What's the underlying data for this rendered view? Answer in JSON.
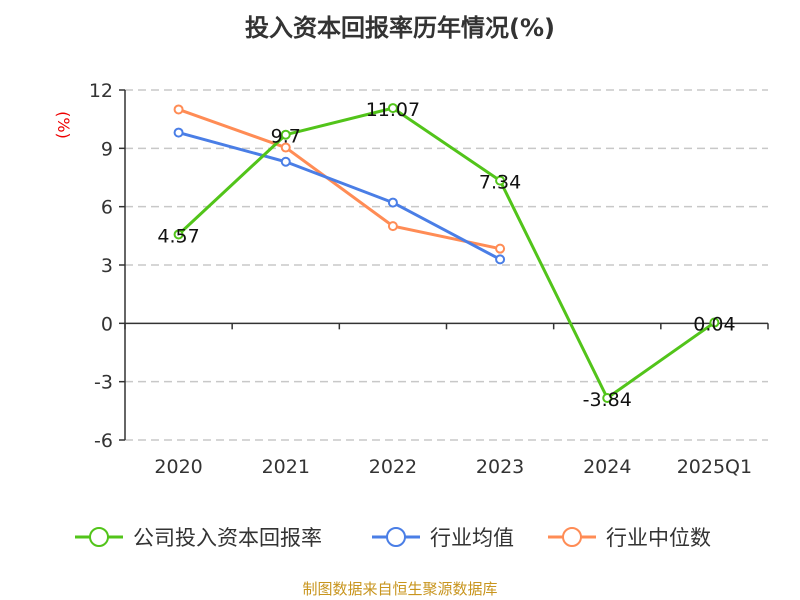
{
  "chart_data": {
    "type": "line",
    "title": "投入资本回报率历年情况(%)",
    "ylabel": "(%)",
    "categories": [
      "2020",
      "2021",
      "2022",
      "2023",
      "2024",
      "2025Q1"
    ],
    "ylim": [
      -6,
      12
    ],
    "yticks": [
      -6,
      -3,
      0,
      3,
      6,
      9,
      12
    ],
    "grid": true,
    "legend_position": "bottom",
    "series": [
      {
        "name": "公司投入资本回报率",
        "color": "#52c41a",
        "values": [
          4.57,
          9.7,
          11.07,
          7.34,
          -3.84,
          0.04
        ],
        "labels": [
          "4.57",
          "9.7",
          "11.07",
          "7.34",
          "-3.84",
          "0.04"
        ]
      },
      {
        "name": "行业均值",
        "color": "#4a7ee6",
        "values": [
          9.81,
          8.31,
          6.21,
          3.29,
          null,
          null
        ]
      },
      {
        "name": "行业中位数",
        "color": "#ff8c55",
        "values": [
          11.0,
          9.04,
          5.0,
          3.84,
          null,
          null
        ]
      }
    ]
  },
  "source": "制图数据来自恒生聚源数据库"
}
